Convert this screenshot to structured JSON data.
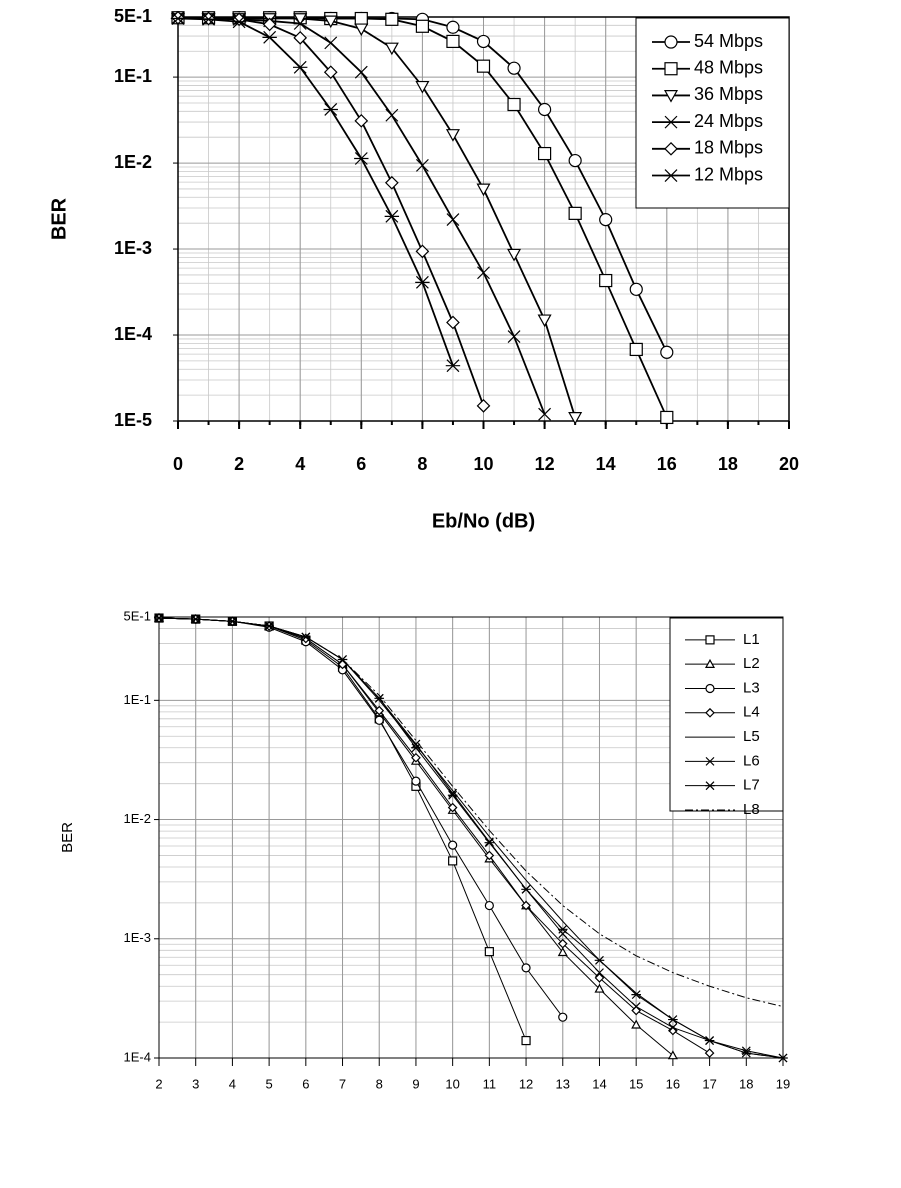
{
  "chart_data": [
    {
      "type": "line",
      "xlabel": "Eb/No (dB)",
      "ylabel": "BER",
      "log_y": true,
      "grid": true,
      "legend": "upper right",
      "x": [
        0,
        1,
        2,
        3,
        4,
        5,
        6,
        7,
        8,
        9,
        10,
        11,
        12,
        13,
        14,
        15,
        16
      ],
      "xlim": [
        0,
        20
      ],
      "xticks": [
        0,
        2,
        4,
        6,
        8,
        10,
        12,
        14,
        16,
        18,
        20
      ],
      "ylim": [
        1e-05,
        0.5
      ],
      "yticks": [
        {
          "value": 0.5,
          "label": "5E-1"
        },
        {
          "value": 0.1,
          "label": "1E-1"
        },
        {
          "value": 0.01,
          "label": "1E-2"
        },
        {
          "value": 0.001,
          "label": "1E-3"
        },
        {
          "value": 0.0001,
          "label": "1E-4"
        },
        {
          "value": 1e-05,
          "label": "1E-5"
        }
      ],
      "series": [
        {
          "name": "54 Mbps",
          "color": "#000000",
          "marker": "circle",
          "values": [
            0.49,
            0.49,
            0.49,
            0.49,
            0.49,
            0.48,
            0.48,
            0.48,
            0.47,
            0.38,
            0.26,
            0.127,
            0.042,
            0.0107,
            0.0022,
            0.00034,
            6.3e-05
          ]
        },
        {
          "name": "48 Mbps",
          "color": "#000000",
          "marker": "square",
          "values": [
            0.49,
            0.49,
            0.49,
            0.49,
            0.49,
            0.48,
            0.48,
            0.47,
            0.39,
            0.26,
            0.134,
            0.048,
            0.0129,
            0.0026,
            0.00043,
            6.8e-05,
            1.1e-05
          ]
        },
        {
          "name": "36 Mbps",
          "color": "#000000",
          "marker": "triangle-down",
          "values": [
            0.48,
            0.48,
            0.48,
            0.48,
            0.48,
            0.45,
            0.364,
            0.218,
            0.078,
            0.0215,
            0.005,
            0.00087,
            0.00015,
            1.1e-05,
            null,
            null,
            null
          ]
        },
        {
          "name": "24 Mbps",
          "color": "#000000",
          "marker": "x",
          "values": [
            0.49,
            0.48,
            0.47,
            0.45,
            0.42,
            0.25,
            0.114,
            0.036,
            0.0094,
            0.0022,
            0.00053,
            9.6e-05,
            1.2e-05,
            null,
            null,
            null,
            null
          ]
        },
        {
          "name": "18 Mbps",
          "color": "#000000",
          "marker": "diamond",
          "values": [
            0.49,
            0.48,
            0.47,
            0.41,
            0.286,
            0.114,
            0.031,
            0.0059,
            0.00094,
            0.00014,
            1.5e-05,
            null,
            null,
            null,
            null,
            null,
            null
          ]
        },
        {
          "name": "12 Mbps",
          "color": "#000000",
          "marker": "star",
          "values": [
            0.48,
            0.47,
            0.44,
            0.29,
            0.13,
            0.042,
            0.0113,
            0.0024,
            0.00041,
            4.4e-05,
            null,
            null,
            null,
            null,
            null,
            null,
            null
          ]
        }
      ]
    },
    {
      "type": "line",
      "ylabel": "BER",
      "log_y": true,
      "grid": true,
      "legend": "upper right",
      "x": [
        2,
        3,
        4,
        5,
        6,
        7,
        8,
        9,
        10,
        11,
        12,
        13,
        14,
        15,
        16,
        17,
        18,
        19
      ],
      "xlim": [
        2,
        19
      ],
      "xticks": [
        2,
        3,
        4,
        5,
        6,
        7,
        8,
        9,
        10,
        11,
        12,
        13,
        14,
        15,
        16,
        17,
        18,
        19
      ],
      "ylim": [
        0.0001,
        0.5
      ],
      "yticks": [
        {
          "value": 0.5,
          "label": "5E-1"
        },
        {
          "value": 0.1,
          "label": "1E-1"
        },
        {
          "value": 0.01,
          "label": "1E-2"
        },
        {
          "value": 0.001,
          "label": "1E-3"
        },
        {
          "value": 0.0001,
          "label": "1E-4"
        }
      ],
      "series": [
        {
          "name": "L1",
          "color": "#000000",
          "marker": "square",
          "values": [
            0.49,
            0.48,
            0.46,
            0.42,
            0.32,
            0.19,
            0.07,
            0.019,
            0.0045,
            0.00078,
            0.00014,
            null,
            null,
            null,
            null,
            null,
            null,
            null
          ]
        },
        {
          "name": "L2",
          "color": "#000000",
          "marker": "triangle",
          "values": [
            0.49,
            0.48,
            0.46,
            0.42,
            0.33,
            0.2,
            0.079,
            0.031,
            0.012,
            0.0047,
            0.0019,
            0.00077,
            0.00038,
            0.00019,
            0.000105,
            null,
            null,
            null
          ]
        },
        {
          "name": "L3",
          "color": "#000000",
          "marker": "circle",
          "values": [
            0.49,
            0.48,
            0.46,
            0.41,
            0.31,
            0.18,
            0.068,
            0.021,
            0.0061,
            0.0019,
            0.00057,
            0.00022,
            null,
            null,
            null,
            null,
            null,
            null
          ]
        },
        {
          "name": "L4",
          "color": "#000000",
          "marker": "diamond",
          "values": [
            0.49,
            0.48,
            0.46,
            0.42,
            0.33,
            0.2,
            0.082,
            0.033,
            0.0126,
            0.005,
            0.0019,
            0.00091,
            0.00047,
            0.00025,
            0.00017,
            0.00011,
            null,
            null
          ]
        },
        {
          "name": "L5",
          "color": "#000000",
          "marker": "none",
          "values": [
            0.49,
            0.48,
            0.46,
            0.42,
            0.34,
            0.22,
            0.1,
            0.042,
            0.0175,
            0.0072,
            0.0031,
            0.0014,
            0.00066,
            0.00035,
            0.00021,
            0.00014,
            0.00011,
            0.0001
          ]
        },
        {
          "name": "L6",
          "color": "#000000",
          "marker": "x",
          "values": [
            0.49,
            0.48,
            0.46,
            0.42,
            0.34,
            0.22,
            0.104,
            0.043,
            0.0166,
            0.0065,
            0.0026,
            0.0011,
            0.00052,
            0.00027,
            0.00018,
            0.00014,
            0.000115,
            0.0001
          ]
        },
        {
          "name": "L7",
          "color": "#000000",
          "marker": "star",
          "values": [
            0.49,
            0.48,
            0.46,
            0.42,
            0.34,
            0.22,
            0.104,
            0.04,
            0.016,
            0.0064,
            0.0026,
            0.0012,
            0.00066,
            0.00034,
            0.00021,
            0.00014,
            0.00011,
            0.0001
          ]
        },
        {
          "name": "L8",
          "color": "#000000",
          "marker": "none",
          "dash": true,
          "values": [
            0.49,
            0.48,
            0.46,
            0.42,
            0.34,
            0.22,
            0.11,
            0.046,
            0.019,
            0.0081,
            0.0037,
            0.0019,
            0.0011,
            0.00072,
            0.00052,
            0.0004,
            0.00032,
            0.00027
          ]
        }
      ]
    }
  ]
}
